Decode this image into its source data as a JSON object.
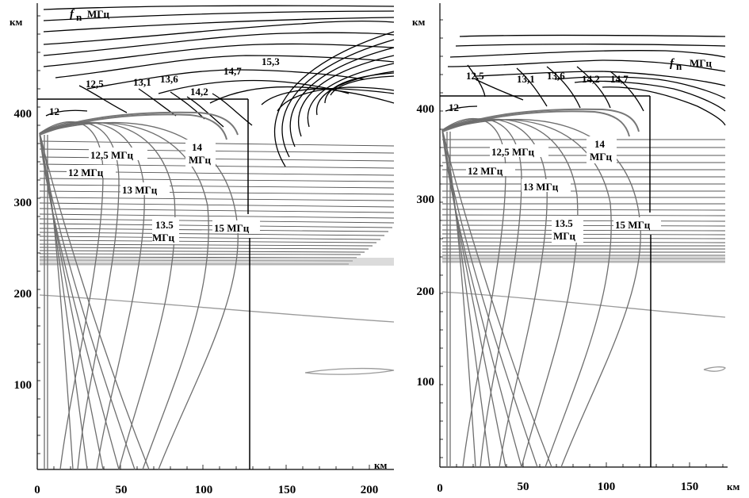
{
  "panels": [
    {
      "id": "left",
      "x_ticks": [
        "0",
        "50",
        "100",
        "150",
        "200"
      ],
      "y_ticks": [
        "100",
        "200",
        "300",
        "400"
      ],
      "x_unit": "км",
      "y_unit": "км",
      "fn_symbol": "f",
      "fn_sub": "n",
      "fn_unit": "МГц",
      "contour_labels": [
        "12",
        "12,5",
        "13,1",
        "13,6",
        "14,2",
        "14,7",
        "15,3"
      ],
      "ray_labels": [
        "12 МГц",
        "12,5 МГц",
        "13 МГц",
        "13.5",
        "МГц",
        "14",
        "МГц",
        "15 МГц"
      ]
    },
    {
      "id": "right",
      "x_ticks": [
        "0",
        "50",
        "100",
        "150"
      ],
      "y_ticks": [
        "100",
        "200",
        "300",
        "400"
      ],
      "x_unit": "км",
      "y_unit": "км",
      "fn_symbol": "f",
      "fn_sub": "n",
      "fn_unit": "МГц",
      "contour_labels": [
        "12",
        "12,5",
        "13,1",
        "13,6",
        "14,2",
        "14,7"
      ],
      "ray_labels": [
        "12 МГц",
        "12,5 МГц",
        "13 МГц",
        "13.5",
        "МГц",
        "14",
        "МГц",
        "15 МГц"
      ]
    }
  ],
  "colors": {
    "contour": "#000000",
    "ray": "#6e6e6e",
    "background_gray": "#9a9a9a"
  }
}
